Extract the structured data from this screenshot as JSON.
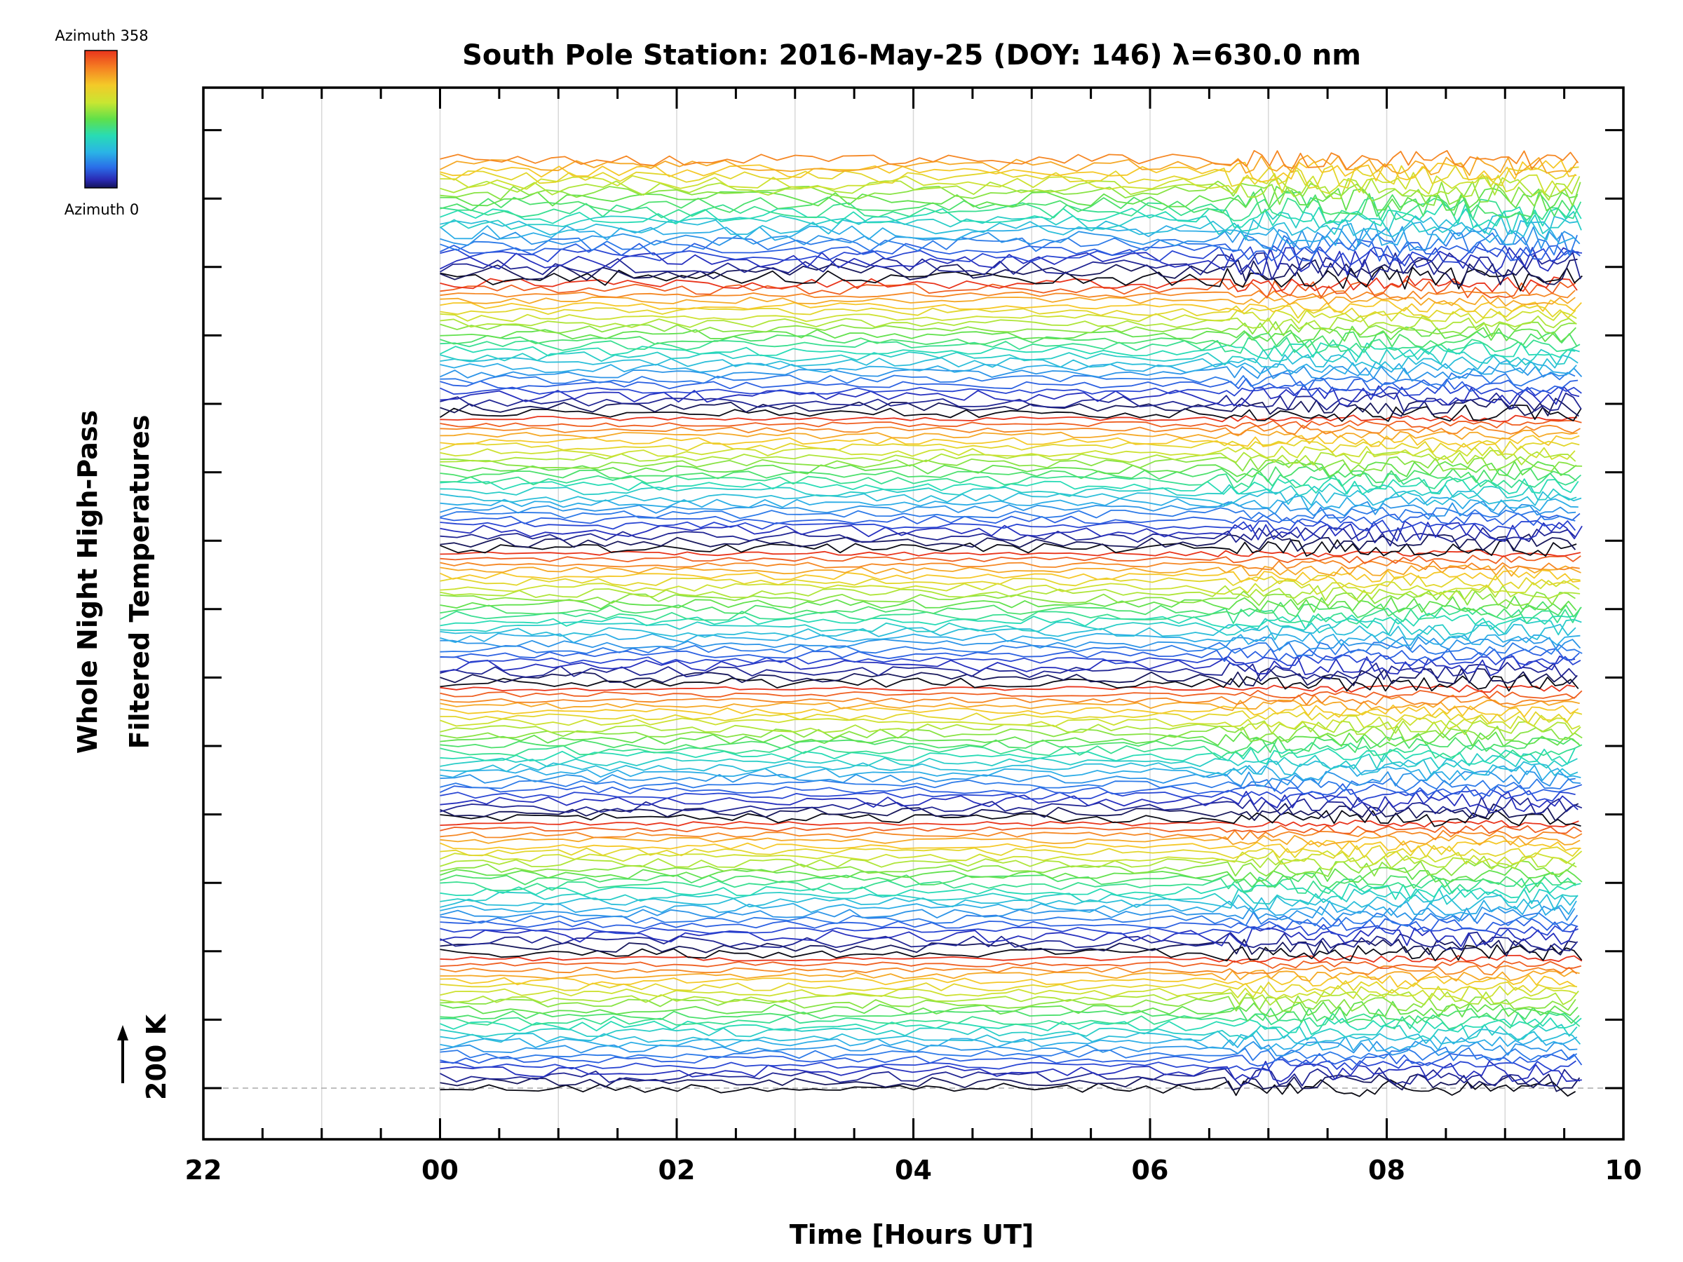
{
  "chart_data": {
    "type": "line",
    "title": "South Pole Station: 2016-May-25 (DOY: 146) λ=630.0 nm",
    "xlabel": "Time [Hours UT]",
    "ylabel_line1": "Whole Night High-Pass",
    "ylabel_line2": "Filtered Temperatures",
    "xlim": [
      22,
      34
    ],
    "x_tick_labels": [
      "22",
      "00",
      "02",
      "04",
      "06",
      "08",
      "10"
    ],
    "x_tick_hours": [
      22,
      24,
      26,
      28,
      30,
      32,
      34
    ],
    "x_gridlines_hours": [
      23,
      24,
      25,
      26,
      27,
      28,
      29,
      30,
      31,
      32,
      33
    ],
    "data_start_hour": 24.0,
    "data_end_hour": 33.65,
    "scale_bar_label": "200 K",
    "colorbar": {
      "top_label": "Azimuth 358",
      "bottom_label": "Azimuth 0",
      "colors": [
        "#e8341c",
        "#f57d22",
        "#f4c928",
        "#c8e632",
        "#5fe04a",
        "#28dcb4",
        "#2ab4e6",
        "#2a6ee8",
        "#2a2ab4",
        "#000000"
      ]
    },
    "n_traces": 166,
    "azimuth_range_deg": [
      0,
      358
    ],
    "groups": 7,
    "note": "Stacked high-pass filtered temperature traces, one per azimuth, offset vertically; trace color encodes azimuth (0 = dark/black, 358 = red)."
  }
}
